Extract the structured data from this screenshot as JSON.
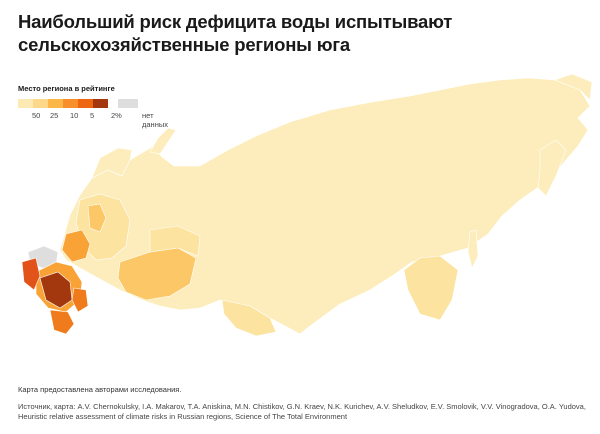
{
  "title_line1": "Наибольший риск дефицита воды испытывают",
  "title_line2": "сельскохозяйственные регионы юга",
  "legend": {
    "title": "Место региона в рейтинге",
    "bins": [
      {
        "label": "50",
        "color": "#fde9b3"
      },
      {
        "label": "25",
        "color": "#fdd88a"
      },
      {
        "label": "10",
        "color": "#fbb848"
      },
      {
        "label": "5",
        "color": "#f7902a"
      },
      {
        "label": "2%",
        "color": "#ee6512"
      },
      {
        "label": "",
        "color": "#a3380f"
      }
    ],
    "no_data": {
      "label": "нет данных",
      "color": "#dedede"
    }
  },
  "colors": {
    "base": "#fdedbc",
    "light": "#fde3a0",
    "mid": "#fcc766",
    "orange": "#f9a337",
    "dark_orange": "#f07b1c",
    "red": "#e2531a",
    "dark_red": "#a3380f",
    "no_data": "#dedede"
  },
  "note": "Карта предоставлена авторами исследования.",
  "source": "Источник, карта: A.V. Chernokulsky, I.A. Makarov, T.A. Aniskina, M.N. Chistikov, G.N. Kraev, N.K. Kurichev, A.V. Sheludkov, E.V. Smolovik, V.V. Vinogradova, O.A. Yudova, Heuristic relative assessment of climate risks in Russian regions, Science of The Total Environment"
}
